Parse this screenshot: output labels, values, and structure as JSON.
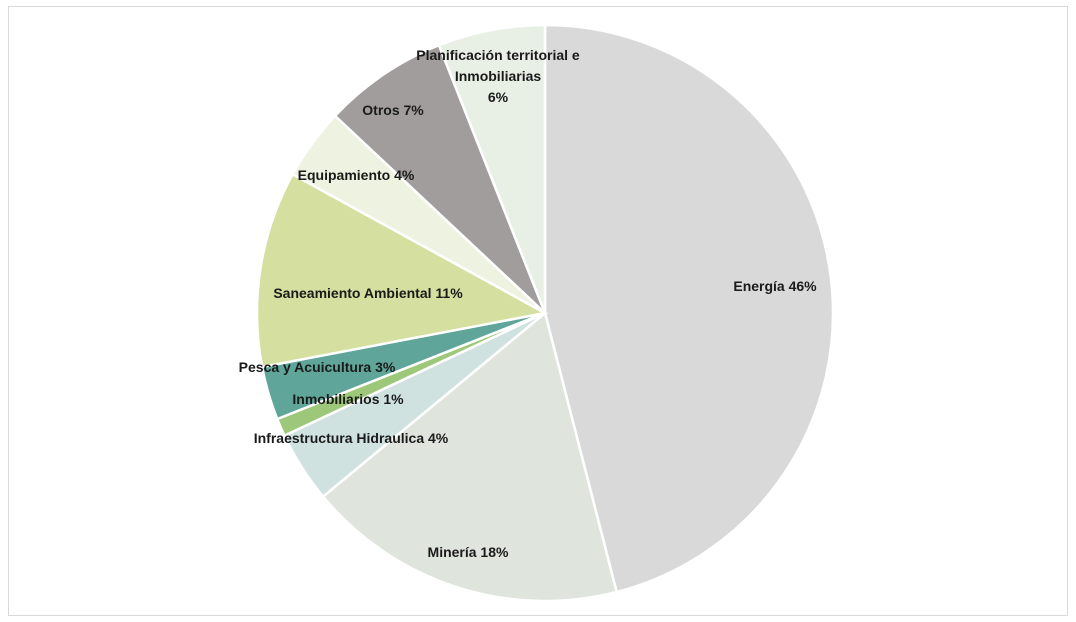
{
  "chart_data": {
    "type": "pie",
    "title": "",
    "start_angle_deg": 0,
    "direction": "clockwise",
    "legend": "none",
    "slices": [
      {
        "label": "Energía 46%",
        "category": "Energía",
        "value": 46,
        "color": "#d9d9d9"
      },
      {
        "label": "Minería 18%",
        "category": "Minería",
        "value": 18,
        "color": "#dfe4dc"
      },
      {
        "label": "Infraestructura Hidraulica 4%",
        "category": "Infraestructura Hidraulica",
        "value": 4,
        "color": "#cfe2e0"
      },
      {
        "label": "Inmobiliarios 1%",
        "category": "Inmobiliarios",
        "value": 1,
        "color": "#9dc879"
      },
      {
        "label": "Pesca y Acuicultura 3%",
        "category": "Pesca y Acuicultura",
        "value": 3,
        "color": "#5fa599"
      },
      {
        "label": "Saneamiento Ambiental 11%",
        "category": "Saneamiento Ambiental",
        "value": 11,
        "color": "#d4dfa0"
      },
      {
        "label": "Equipamiento 4%",
        "category": "Equipamiento",
        "value": 4,
        "color": "#eef2e1"
      },
      {
        "label": "Otros 7%",
        "category": "Otros",
        "value": 7,
        "color": "#a19d9d"
      },
      {
        "label": [
          "Planificación territorial e",
          "Inmobiliarias",
          "6%"
        ],
        "category": "Planificación territorial e Inmobiliarias",
        "value": 6,
        "color": "#e8f0e6"
      }
    ]
  }
}
